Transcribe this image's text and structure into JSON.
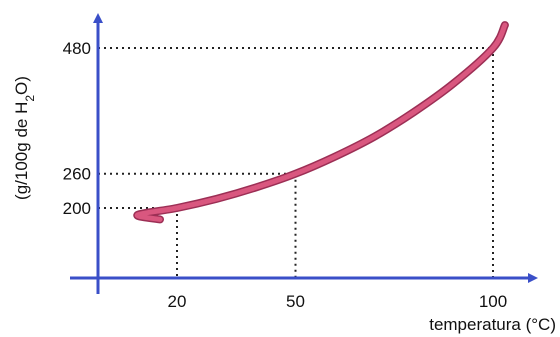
{
  "chart_data": {
    "type": "line",
    "title": "",
    "xlabel": "temperatura (°C)",
    "ylabel_parts": {
      "prefix": "(g/100g de H",
      "sub": "2",
      "suffix": "O)"
    },
    "xlim": [
      0,
      110
    ],
    "ylim": [
      60,
      540
    ],
    "axis_color": "#3a4fc8",
    "curve_color": "#d9577f",
    "curve_outline_color": "#9c2f55",
    "series": [
      {
        "x": [
          0,
          10,
          20,
          30,
          40,
          50,
          60,
          70,
          80,
          90,
          100
        ],
        "y": [
          180,
          188,
          200,
          216,
          236,
          260,
          290,
          325,
          368,
          418,
          480
        ]
      }
    ],
    "highlight_points": [
      {
        "x": 20,
        "y": 200
      },
      {
        "x": 50,
        "y": 260
      },
      {
        "x": 100,
        "y": 480
      }
    ],
    "xticks": [
      {
        "value": 20,
        "label": "20"
      },
      {
        "value": 50,
        "label": "50"
      },
      {
        "value": 100,
        "label": "100"
      }
    ],
    "yticks": [
      {
        "value": 200,
        "label": "200"
      },
      {
        "value": 260,
        "label": "260"
      },
      {
        "value": 480,
        "label": "480"
      }
    ],
    "grid": false,
    "legend": "none"
  }
}
